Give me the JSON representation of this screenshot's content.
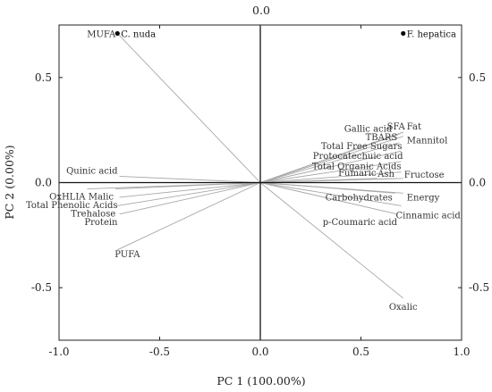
{
  "chart_data": {
    "type": "scatter",
    "title": "0.0",
    "xlabel": "PC 1 (100.00%)",
    "ylabel": "PC 2 (0.00%)",
    "xlim": [
      -1.0,
      1.0
    ],
    "ylim": [
      -0.75,
      0.75
    ],
    "x_ticks": [
      "-1.0",
      "-0.5",
      "0.0",
      "0.5",
      "1.0"
    ],
    "y_ticks": [
      "-0.5",
      "0.0",
      "0.5"
    ],
    "y_ticks_right": [
      "-0.5",
      "0.0",
      "0.5"
    ],
    "grid": false,
    "samples": [
      {
        "name": "C. nuda",
        "x": -0.71,
        "y": 0.71
      },
      {
        "name": "F. hepatica",
        "x": 0.71,
        "y": 0.71
      }
    ],
    "loadings": [
      {
        "name": "MUFA",
        "x": -0.71,
        "y": 0.71
      },
      {
        "name": "Quinic acid",
        "x": -0.7,
        "y": 0.03
      },
      {
        "name": "OxHLIA",
        "x": -0.86,
        "y": -0.03
      },
      {
        "name": "Malic",
        "x": -0.72,
        "y": -0.03
      },
      {
        "name": "Total Phenolic Acids",
        "x": -0.7,
        "y": -0.07
      },
      {
        "name": "Trehalose",
        "x": -0.71,
        "y": -0.11
      },
      {
        "name": "Protein",
        "x": -0.7,
        "y": -0.15
      },
      {
        "name": "PUFA",
        "x": -0.71,
        "y": -0.32
      },
      {
        "name": "SFA",
        "x": 0.71,
        "y": 0.24
      },
      {
        "name": "Fat",
        "x": 0.71,
        "y": 0.24
      },
      {
        "name": "Gallic acid",
        "x": 0.69,
        "y": 0.23
      },
      {
        "name": "Mannitol",
        "x": 0.71,
        "y": 0.22
      },
      {
        "name": "TBARS",
        "x": 0.69,
        "y": 0.19
      },
      {
        "name": "Total Free Sugars",
        "x": 0.7,
        "y": 0.15
      },
      {
        "name": "Protocatechuic acid",
        "x": 0.7,
        "y": 0.1
      },
      {
        "name": "Total Organic Acids",
        "x": 0.7,
        "y": 0.05
      },
      {
        "name": "Fumaric",
        "x": 0.58,
        "y": 0.02
      },
      {
        "name": "Ash",
        "x": 0.68,
        "y": 0.02
      },
      {
        "name": "Fructose",
        "x": 0.71,
        "y": 0.02
      },
      {
        "name": "Carbohydrates",
        "x": 0.67,
        "y": -0.05
      },
      {
        "name": "Energy",
        "x": 0.71,
        "y": -0.05
      },
      {
        "name": "Cinnamic acid",
        "x": 0.7,
        "y": -0.11
      },
      {
        "name": "p-Coumaric acid",
        "x": 0.68,
        "y": -0.15
      },
      {
        "name": "Oxalic",
        "x": 0.71,
        "y": -0.55
      }
    ]
  }
}
